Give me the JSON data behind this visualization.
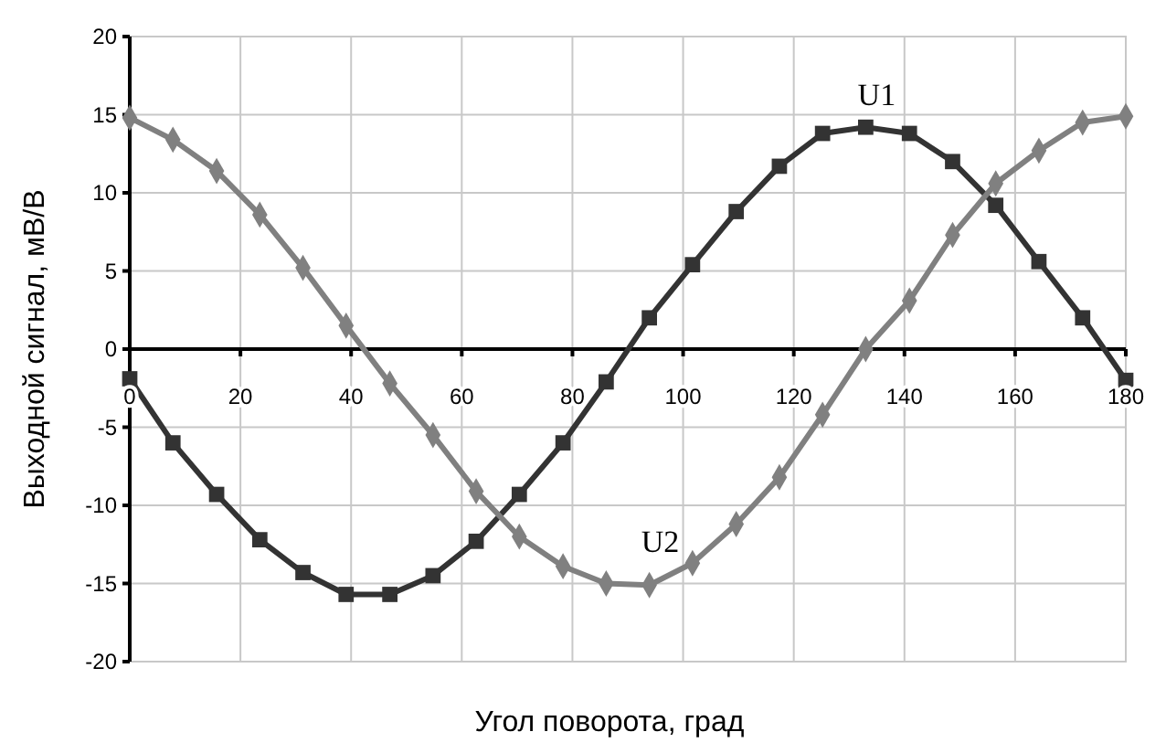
{
  "chart_data": {
    "type": "line",
    "xlabel": "Угол поворота, град",
    "ylabel": "Выходной сигнал, мВ/В",
    "x": [
      0,
      7.8,
      15.7,
      23.5,
      31.3,
      39.1,
      47,
      54.8,
      62.6,
      70.4,
      78.3,
      86.1,
      93.9,
      101.7,
      109.6,
      117.4,
      125.2,
      133,
      140.9,
      148.7,
      156.5,
      164.3,
      172.2,
      180
    ],
    "series": [
      {
        "name": "U1",
        "color": "#333333",
        "marker": "square",
        "values": [
          -1.9,
          -6.0,
          -9.3,
          -12.2,
          -14.3,
          -15.7,
          -15.7,
          -14.5,
          -12.3,
          -9.3,
          -6.0,
          -2.1,
          2.0,
          5.4,
          8.8,
          11.7,
          13.8,
          14.2,
          13.8,
          12.0,
          9.2,
          5.6,
          2.0,
          -2.0
        ]
      },
      {
        "name": "U2",
        "color": "#808080",
        "marker": "diamond",
        "values": [
          14.8,
          13.4,
          11.4,
          8.6,
          5.2,
          1.5,
          -2.2,
          -5.5,
          -9.1,
          -12.0,
          -13.9,
          -15.0,
          -15.1,
          -13.7,
          -11.2,
          -8.2,
          -4.2,
          0.0,
          3.1,
          7.3,
          10.6,
          12.7,
          14.5,
          14.9
        ]
      }
    ],
    "xlim": [
      0,
      180
    ],
    "xticks": [
      0,
      20,
      40,
      60,
      80,
      100,
      120,
      140,
      160,
      180
    ],
    "ylim": [
      -20,
      20
    ],
    "yticks": [
      -20,
      -15,
      -10,
      -5,
      0,
      5,
      10,
      15,
      20
    ],
    "grid": true,
    "legend": false,
    "line_style": "solid"
  }
}
